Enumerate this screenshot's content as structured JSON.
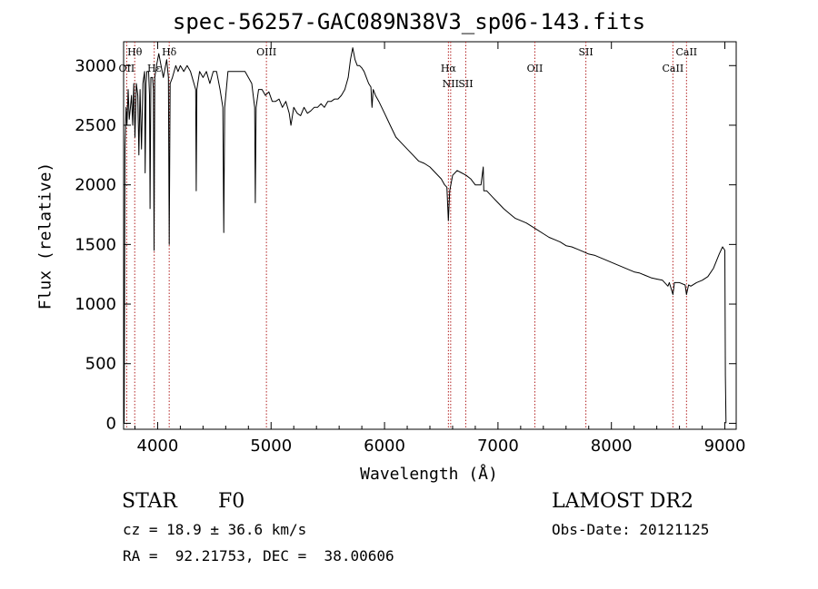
{
  "page": {
    "title": "spec-56257-GAC089N38V3_sp06-143.fits"
  },
  "footer": {
    "class_label": "STAR",
    "subclass": "F0",
    "survey": "LAMOST DR2",
    "cz": "cz = 18.9 ± 36.6 km/s",
    "obs_date": "Obs-Date: 20121125",
    "coords": "RA =  92.21753, DEC =  38.00606"
  },
  "chart_data": {
    "type": "line",
    "title": "spec-56257-GAC089N38V3_sp06-143.fits",
    "xlabel": "Wavelength (Å)",
    "ylabel": "Flux (relative)",
    "xlim": [
      3700,
      9100
    ],
    "ylim": [
      -50,
      3200
    ],
    "xticks": [
      4000,
      5000,
      6000,
      7000,
      8000,
      9000
    ],
    "yticks": [
      0,
      500,
      1000,
      1500,
      2000,
      2500,
      3000
    ],
    "line_color": "#000000",
    "marker_color": "#b22222",
    "series": [
      {
        "points": [
          [
            3700,
            1050
          ],
          [
            3705,
            0
          ],
          [
            3712,
            2300
          ],
          [
            3722,
            2650
          ],
          [
            3730,
            2500
          ],
          [
            3740,
            2800
          ],
          [
            3750,
            2550
          ],
          [
            3760,
            2650
          ],
          [
            3770,
            2750
          ],
          [
            3780,
            2500
          ],
          [
            3790,
            2850
          ],
          [
            3800,
            2400
          ],
          [
            3812,
            2850
          ],
          [
            3825,
            2750
          ],
          [
            3835,
            2250
          ],
          [
            3845,
            2800
          ],
          [
            3858,
            2300
          ],
          [
            3870,
            2850
          ],
          [
            3885,
            2950
          ],
          [
            3890,
            2100
          ],
          [
            3898,
            2850
          ],
          [
            3905,
            2950
          ],
          [
            3920,
            2950
          ],
          [
            3928,
            2750
          ],
          [
            3933,
            1800
          ],
          [
            3940,
            2900
          ],
          [
            3955,
            2900
          ],
          [
            3963,
            2800
          ],
          [
            3968,
            1450
          ],
          [
            3975,
            2900
          ],
          [
            3990,
            3000
          ],
          [
            4010,
            3100
          ],
          [
            4030,
            3000
          ],
          [
            4050,
            2900
          ],
          [
            4080,
            3050
          ],
          [
            4095,
            2900
          ],
          [
            4102,
            1500
          ],
          [
            4110,
            2850
          ],
          [
            4130,
            2900
          ],
          [
            4160,
            3000
          ],
          [
            4180,
            2950
          ],
          [
            4200,
            3000
          ],
          [
            4230,
            2950
          ],
          [
            4260,
            3000
          ],
          [
            4290,
            2950
          ],
          [
            4320,
            2850
          ],
          [
            4335,
            2800
          ],
          [
            4340,
            1950
          ],
          [
            4346,
            2800
          ],
          [
            4370,
            2950
          ],
          [
            4400,
            2900
          ],
          [
            4430,
            2950
          ],
          [
            4460,
            2850
          ],
          [
            4490,
            2950
          ],
          [
            4520,
            2950
          ],
          [
            4550,
            2800
          ],
          [
            4575,
            2650
          ],
          [
            4583,
            1600
          ],
          [
            4591,
            2650
          ],
          [
            4620,
            2950
          ],
          [
            4650,
            2950
          ],
          [
            4680,
            2950
          ],
          [
            4710,
            2950
          ],
          [
            4740,
            2950
          ],
          [
            4770,
            2950
          ],
          [
            4800,
            2900
          ],
          [
            4830,
            2850
          ],
          [
            4855,
            2650
          ],
          [
            4861,
            1850
          ],
          [
            4868,
            2650
          ],
          [
            4890,
            2800
          ],
          [
            4920,
            2800
          ],
          [
            4950,
            2750
          ],
          [
            4980,
            2780
          ],
          [
            5010,
            2700
          ],
          [
            5040,
            2700
          ],
          [
            5070,
            2720
          ],
          [
            5100,
            2650
          ],
          [
            5130,
            2700
          ],
          [
            5160,
            2600
          ],
          [
            5175,
            2500
          ],
          [
            5200,
            2650
          ],
          [
            5230,
            2600
          ],
          [
            5260,
            2580
          ],
          [
            5290,
            2650
          ],
          [
            5320,
            2600
          ],
          [
            5350,
            2620
          ],
          [
            5380,
            2650
          ],
          [
            5410,
            2650
          ],
          [
            5440,
            2680
          ],
          [
            5470,
            2650
          ],
          [
            5500,
            2700
          ],
          [
            5530,
            2700
          ],
          [
            5560,
            2720
          ],
          [
            5590,
            2720
          ],
          [
            5620,
            2750
          ],
          [
            5650,
            2800
          ],
          [
            5680,
            2900
          ],
          [
            5700,
            3050
          ],
          [
            5720,
            3150
          ],
          [
            5740,
            3050
          ],
          [
            5760,
            3000
          ],
          [
            5780,
            3000
          ],
          [
            5800,
            2980
          ],
          [
            5820,
            2950
          ],
          [
            5840,
            2900
          ],
          [
            5860,
            2850
          ],
          [
            5880,
            2820
          ],
          [
            5890,
            2650
          ],
          [
            5900,
            2800
          ],
          [
            5920,
            2750
          ],
          [
            5950,
            2700
          ],
          [
            6000,
            2600
          ],
          [
            6050,
            2500
          ],
          [
            6100,
            2400
          ],
          [
            6150,
            2350
          ],
          [
            6200,
            2300
          ],
          [
            6250,
            2250
          ],
          [
            6300,
            2200
          ],
          [
            6350,
            2180
          ],
          [
            6400,
            2150
          ],
          [
            6450,
            2100
          ],
          [
            6500,
            2050
          ],
          [
            6530,
            2000
          ],
          [
            6550,
            1980
          ],
          [
            6563,
            1700
          ],
          [
            6575,
            1950
          ],
          [
            6600,
            2080
          ],
          [
            6640,
            2120
          ],
          [
            6680,
            2100
          ],
          [
            6720,
            2080
          ],
          [
            6760,
            2050
          ],
          [
            6800,
            2000
          ],
          [
            6850,
            2000
          ],
          [
            6870,
            2150
          ],
          [
            6875,
            1950
          ],
          [
            6900,
            1950
          ],
          [
            6950,
            1900
          ],
          [
            7000,
            1850
          ],
          [
            7050,
            1800
          ],
          [
            7100,
            1760
          ],
          [
            7150,
            1720
          ],
          [
            7200,
            1700
          ],
          [
            7250,
            1680
          ],
          [
            7300,
            1650
          ],
          [
            7350,
            1620
          ],
          [
            7400,
            1590
          ],
          [
            7450,
            1560
          ],
          [
            7500,
            1540
          ],
          [
            7550,
            1520
          ],
          [
            7600,
            1490
          ],
          [
            7650,
            1480
          ],
          [
            7700,
            1460
          ],
          [
            7750,
            1440
          ],
          [
            7800,
            1420
          ],
          [
            7850,
            1410
          ],
          [
            7900,
            1390
          ],
          [
            7950,
            1370
          ],
          [
            8000,
            1350
          ],
          [
            8050,
            1330
          ],
          [
            8100,
            1310
          ],
          [
            8150,
            1290
          ],
          [
            8200,
            1270
          ],
          [
            8250,
            1260
          ],
          [
            8300,
            1240
          ],
          [
            8350,
            1220
          ],
          [
            8400,
            1210
          ],
          [
            8450,
            1200
          ],
          [
            8498,
            1150
          ],
          [
            8510,
            1180
          ],
          [
            8542,
            1080
          ],
          [
            8555,
            1180
          ],
          [
            8600,
            1180
          ],
          [
            8650,
            1160
          ],
          [
            8662,
            1080
          ],
          [
            8680,
            1160
          ],
          [
            8700,
            1150
          ],
          [
            8750,
            1180
          ],
          [
            8800,
            1200
          ],
          [
            8850,
            1230
          ],
          [
            8900,
            1300
          ],
          [
            8950,
            1420
          ],
          [
            8980,
            1480
          ],
          [
            9000,
            1450
          ],
          [
            9005,
            400
          ],
          [
            9010,
            0
          ]
        ]
      }
    ],
    "lines": [
      {
        "label": "Hθ",
        "wavelength": 3798,
        "label_row": 1
      },
      {
        "label": "OII",
        "wavelength": 3727,
        "label_row": 2
      },
      {
        "label": "Hε",
        "wavelength": 3970,
        "label_row": 2
      },
      {
        "label": "Hδ",
        "wavelength": 4102,
        "label_row": 1
      },
      {
        "label": "OIII",
        "wavelength": 4959,
        "label_row": 1
      },
      {
        "label": "Hα",
        "wavelength": 6563,
        "label_row": 2
      },
      {
        "label": "NII",
        "wavelength": 6583,
        "label_row": 3
      },
      {
        "label": "SII",
        "wavelength": 6716,
        "label_row": 3
      },
      {
        "label": "OII",
        "wavelength": 7325,
        "label_row": 2
      },
      {
        "label": "SII",
        "wavelength": 7775,
        "label_row": 1
      },
      {
        "label": "CaII",
        "wavelength": 8542,
        "label_row": 2
      },
      {
        "label": "CaII",
        "wavelength": 8662,
        "label_row": 1
      }
    ]
  }
}
